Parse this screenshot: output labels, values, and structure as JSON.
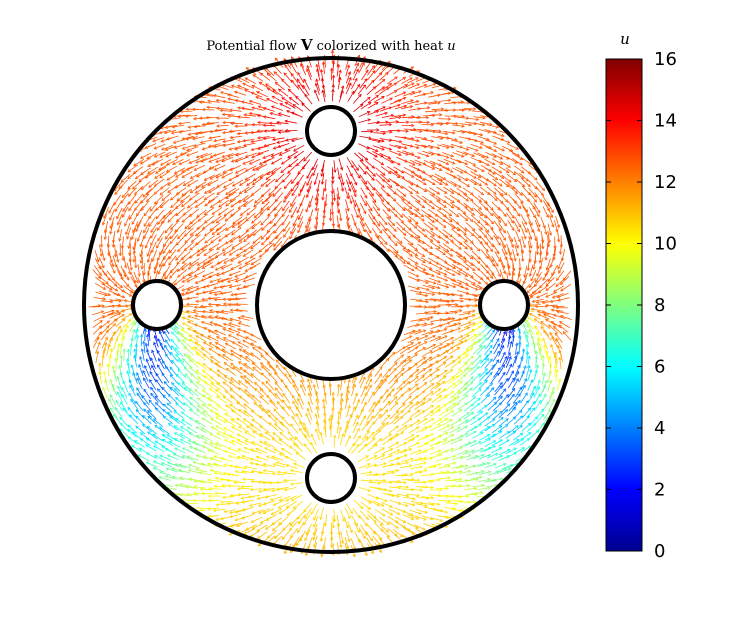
{
  "chart_data": {
    "type": "quiver",
    "title_parts": [
      "Potential flow ",
      "V",
      " colorized with heat ",
      "u"
    ],
    "colorbar": {
      "label": "u",
      "range": [
        0,
        16
      ],
      "ticks": [
        "0",
        "2",
        "4",
        "6",
        "8",
        "10",
        "12",
        "14",
        "16"
      ],
      "colormap": "jet"
    },
    "grid": false,
    "axes_visible": false
  }
}
